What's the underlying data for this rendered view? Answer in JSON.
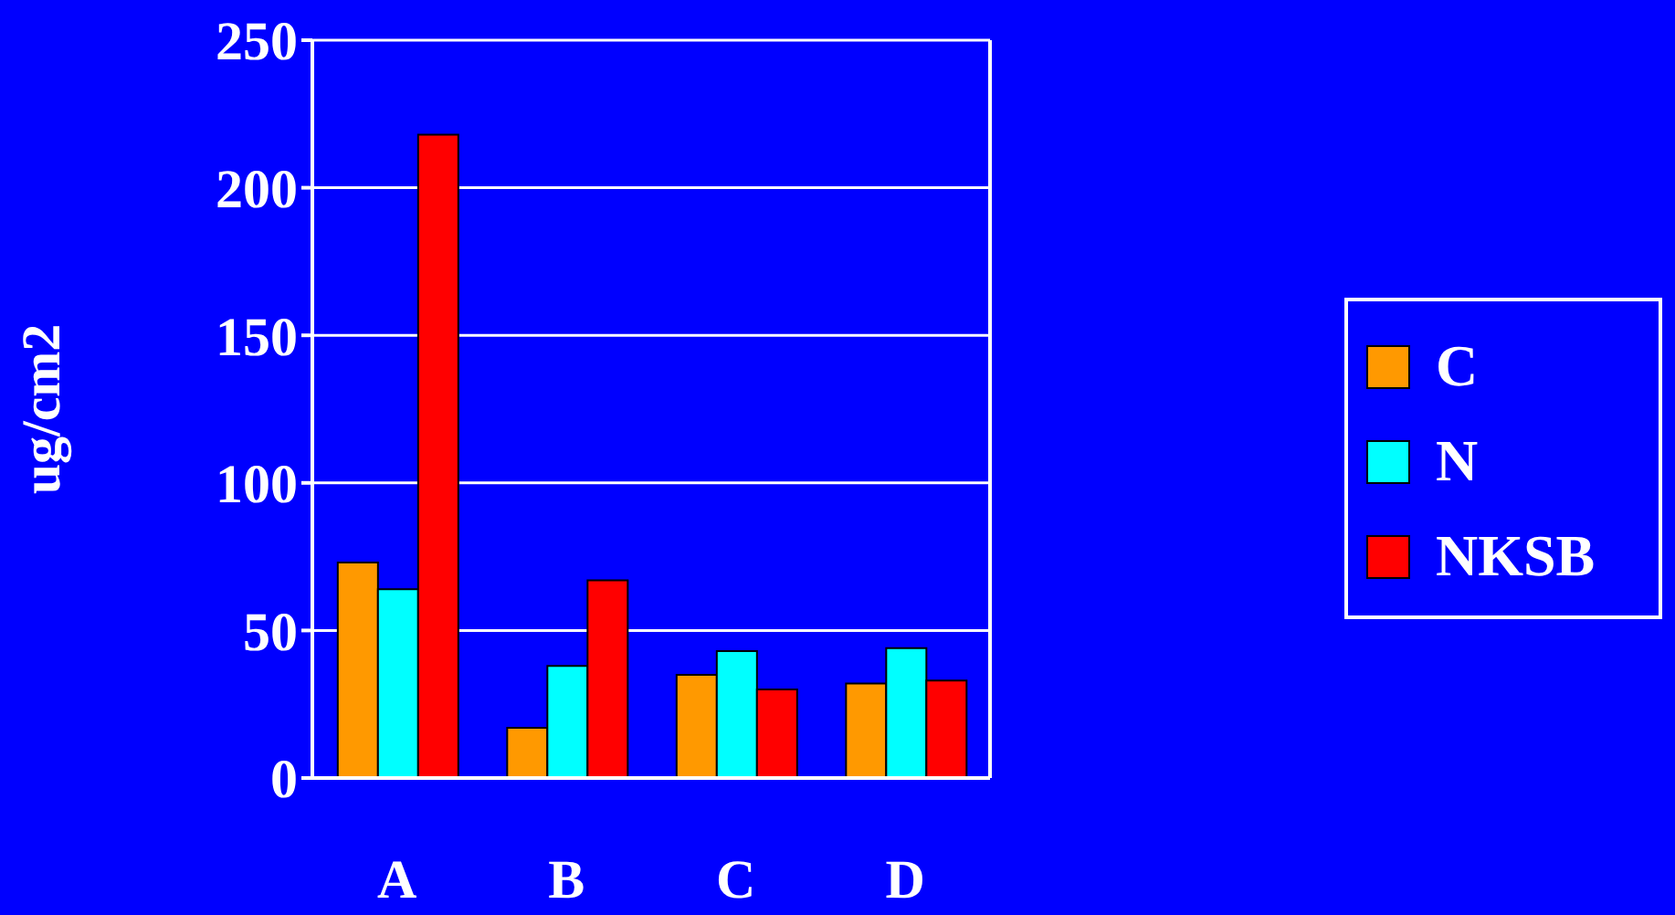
{
  "chart_data": {
    "type": "bar",
    "ylabel": "ug/cm2",
    "categories": [
      "A",
      "B",
      "C",
      "D"
    ],
    "series": [
      {
        "name": "C",
        "color": "#ff9900",
        "values": [
          73,
          17,
          35,
          32
        ]
      },
      {
        "name": "N",
        "color": "#00ffff",
        "values": [
          64,
          38,
          43,
          44
        ]
      },
      {
        "name": "NKSB",
        "color": "#ff0000",
        "values": [
          218,
          67,
          30,
          33
        ]
      }
    ],
    "ylim": [
      0,
      250
    ],
    "yticks": [
      0,
      50,
      100,
      150,
      200,
      250
    ],
    "grid": "y",
    "legend": "right"
  }
}
